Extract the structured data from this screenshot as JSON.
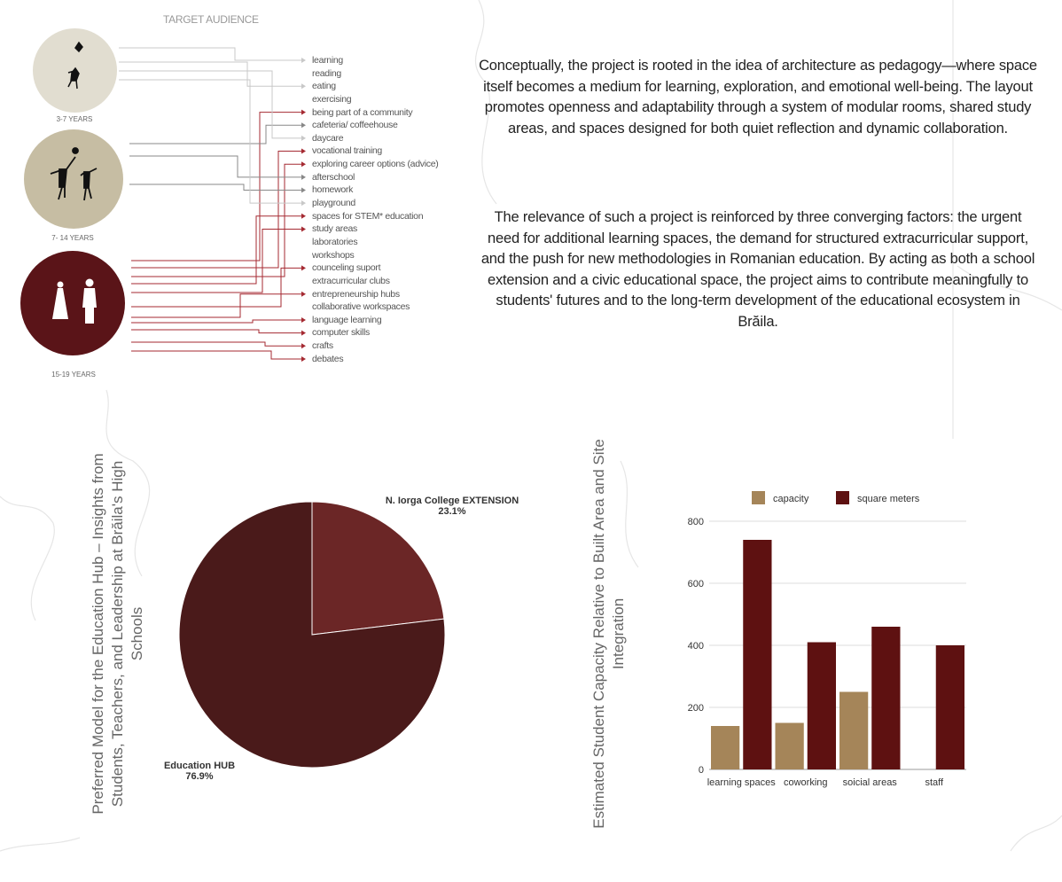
{
  "diagram": {
    "title": "TARGET AUDIENCE",
    "groups": [
      {
        "id": "light",
        "label": "3-7 YEARS",
        "color": "#e1ddd0",
        "line": "#c8c8c8"
      },
      {
        "id": "mid",
        "label": "7- 14 YEARS",
        "color": "#c6bda3",
        "line": "#888888"
      },
      {
        "id": "red",
        "label": "15-19 YEARS",
        "color": "#5a1418",
        "line": "#a52a32"
      }
    ],
    "items": [
      {
        "label": "learning",
        "group": "light"
      },
      {
        "label": "reading",
        "group": null
      },
      {
        "label": "eating",
        "group": "light"
      },
      {
        "label": "exercising",
        "group": null
      },
      {
        "label": "being part of a community",
        "group": "red"
      },
      {
        "label": "cafeteria/ coffeehouse",
        "group": "mid"
      },
      {
        "label": "daycare",
        "group": "light"
      },
      {
        "label": "vocational training",
        "group": "red"
      },
      {
        "label": "exploring career options (advice)",
        "group": "red"
      },
      {
        "label": "afterschool",
        "group": "mid"
      },
      {
        "label": "homework",
        "group": "mid"
      },
      {
        "label": "playground",
        "group": "light"
      },
      {
        "label": "spaces for STEM* education",
        "group": "red"
      },
      {
        "label": "study areas",
        "group": "red"
      },
      {
        "label": "laboratories",
        "group": null
      },
      {
        "label": "workshops",
        "group": null
      },
      {
        "label": "counceling suport",
        "group": "red"
      },
      {
        "label": "extracurricular clubs",
        "group": null
      },
      {
        "label": "entrepreneurship hubs",
        "group": "red"
      },
      {
        "label": "collaborative workspaces",
        "group": null
      },
      {
        "label": "language learning",
        "group": "red"
      },
      {
        "label": "computer skills",
        "group": "red"
      },
      {
        "label": "crafts",
        "group": "red"
      },
      {
        "label": "debates",
        "group": "red"
      }
    ]
  },
  "text": {
    "p1": "Conceptually, the project is rooted in the idea of architecture as pedagogy—where space itself becomes a medium for learning, exploration, and emotional well-being. The layout promotes openness and adaptability through a system of modular rooms, shared study areas, and spaces designed for both quiet reflection and dynamic collaboration.",
    "p2": "The relevance of such a project is reinforced by three converging factors: the urgent need for additional learning spaces, the demand for structured extracurricular support, and the push for new methodologies in Romanian education. By acting as both a school extension and a civic educational space, the project aims to contribute meaningfully to students' futures and to the long-term development of the educational ecosystem in Brăila."
  },
  "chart_data": [
    {
      "type": "pie",
      "title": "Preferred Model for the Education Hub – Insights from Students, Teachers, and Leadership at Brăila's High Schools",
      "slices": [
        {
          "label": "N. Iorga College EXTENSION",
          "value": 23.1,
          "value_label": "23.1%",
          "color": "#6b2626"
        },
        {
          "label": "Education HUB",
          "value": 76.9,
          "value_label": "76.9%",
          "color": "#4a1a1a"
        }
      ]
    },
    {
      "type": "bar",
      "title": "Estimated Student Capacity Relative to Built Area and Site Integration",
      "categories": [
        "learning spaces",
        "coworking",
        "soicial areas",
        "staff"
      ],
      "series": [
        {
          "name": "capacity",
          "values": [
            140,
            150,
            250,
            0
          ],
          "color": "#a58559"
        },
        {
          "name": "square meters",
          "values": [
            740,
            410,
            460,
            400
          ],
          "color": "#5e1111"
        }
      ],
      "ylim": [
        0,
        800
      ],
      "yticks": [
        "0",
        "200",
        "400",
        "600",
        "800"
      ],
      "grid": true,
      "legend": "top"
    }
  ]
}
